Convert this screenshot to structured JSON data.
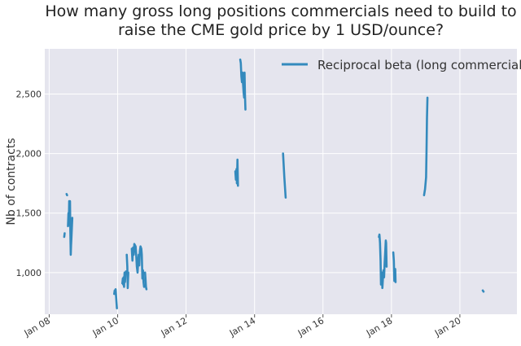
{
  "chart_data": {
    "type": "line",
    "title_line1": "How many gross long positions commercials need to build to",
    "title_line2": "raise the CME gold price by 1 USD/ounce?",
    "xlabel": "",
    "ylabel": "Nb of contracts",
    "ylim": [
      650,
      2880
    ],
    "xlim": [
      "2007-11-15",
      "2021-09-01"
    ],
    "y_ticks": [
      1000,
      1500,
      2000,
      2500
    ],
    "y_tick_labels": [
      "1,000",
      "1,500",
      "2,000",
      "2,500"
    ],
    "x_ticks": [
      "2008-01-01",
      "2010-01-01",
      "2012-01-01",
      "2014-01-01",
      "2016-01-01",
      "2018-01-01",
      "2020-01-01"
    ],
    "x_tick_labels": [
      "Jan 08",
      "Jan 10",
      "Jan 12",
      "Jan 14",
      "Jan 16",
      "Jan 18",
      "Jan 20"
    ],
    "grid": true,
    "legend_position": "top-right",
    "colors": {
      "series": "#348abd",
      "plot_bg": "#e5e5ee",
      "grid": "#ffffff"
    },
    "series": [
      {
        "name": "Reciprocal beta (long commercial)",
        "segments": [
          [
            [
              "2008-06-10",
              1300
            ],
            [
              "2008-06-14",
              1330
            ]
          ],
          [
            [
              "2008-07-05",
              1660
            ],
            [
              "2008-07-10",
              1650
            ]
          ],
          [
            [
              "2008-07-20",
              1390
            ],
            [
              "2008-07-25",
              1500
            ],
            [
              "2008-07-28",
              1400
            ],
            [
              "2008-08-02",
              1600
            ],
            [
              "2008-08-06",
              1450
            ],
            [
              "2008-08-10",
              1600
            ],
            [
              "2008-08-14",
              1350
            ],
            [
              "2008-08-18",
              1150
            ],
            [
              "2008-08-22",
              1230
            ],
            [
              "2008-08-26",
              1300
            ],
            [
              "2008-08-30",
              1380
            ],
            [
              "2008-09-04",
              1460
            ]
          ],
          [
            [
              "2009-11-25",
              820
            ],
            [
              "2009-11-30",
              850
            ],
            [
              "2009-12-04",
              830
            ],
            [
              "2009-12-10",
              860
            ],
            [
              "2009-12-15",
              800
            ],
            [
              "2009-12-20",
              740
            ],
            [
              "2009-12-24",
              700
            ]
          ],
          [
            [
              "2010-02-20",
              910
            ],
            [
              "2010-02-25",
              950
            ],
            [
              "2010-03-01",
              900
            ],
            [
              "2010-03-05",
              960
            ],
            [
              "2010-03-10",
              880
            ],
            [
              "2010-03-15",
              1000
            ],
            [
              "2010-03-20",
              920
            ],
            [
              "2010-03-25",
              980
            ],
            [
              "2010-03-30",
              1010
            ]
          ],
          [
            [
              "2010-04-08",
              1150
            ],
            [
              "2010-04-14",
              1050
            ],
            [
              "2010-04-18",
              870
            ],
            [
              "2010-04-24",
              1000
            ]
          ],
          [
            [
              "2010-06-01",
              1200
            ],
            [
              "2010-06-08",
              1100
            ],
            [
              "2010-06-15",
              1210
            ],
            [
              "2010-06-22",
              1150
            ],
            [
              "2010-06-28",
              1240
            ],
            [
              "2010-07-05",
              1230
            ],
            [
              "2010-07-12",
              1220
            ],
            [
              "2010-07-18",
              1150
            ],
            [
              "2010-07-25",
              1050
            ],
            [
              "2010-08-01",
              1000
            ],
            [
              "2010-08-08",
              1100
            ],
            [
              "2010-08-14",
              1150
            ],
            [
              "2010-08-20",
              1060
            ],
            [
              "2010-08-26",
              1180
            ],
            [
              "2010-09-02",
              1220
            ],
            [
              "2010-09-10",
              1200
            ],
            [
              "2010-09-16",
              1150
            ],
            [
              "2010-09-22",
              950
            ],
            [
              "2010-09-28",
              1020
            ],
            [
              "2010-10-04",
              920
            ],
            [
              "2010-10-10",
              880
            ]
          ],
          [
            [
              "2010-10-20",
              1000
            ],
            [
              "2010-10-25",
              950
            ],
            [
              "2010-10-30",
              880
            ],
            [
              "2010-11-04",
              860
            ]
          ],
          [
            [
              "2013-06-10",
              1850
            ],
            [
              "2013-06-16",
              1780
            ],
            [
              "2013-06-22",
              1870
            ],
            [
              "2013-06-26",
              1750
            ],
            [
              "2013-07-02",
              1950
            ],
            [
              "2013-07-08",
              1730
            ]
          ],
          [
            [
              "2013-08-01",
              2790
            ],
            [
              "2013-08-07",
              2760
            ],
            [
              "2013-08-13",
              2650
            ],
            [
              "2013-08-19",
              2600
            ],
            [
              "2013-08-25",
              2680
            ],
            [
              "2013-08-31",
              2580
            ],
            [
              "2013-09-06",
              2520
            ],
            [
              "2013-09-12",
              2470
            ],
            [
              "2013-09-16",
              2680
            ],
            [
              "2013-09-20",
              2500
            ],
            [
              "2013-09-26",
              2370
            ]
          ],
          [
            [
              "2014-11-01",
              2000
            ],
            [
              "2014-11-15",
              1800
            ],
            [
              "2014-11-29",
              1630
            ]
          ],
          [
            [
              "2017-08-20",
              1300
            ],
            [
              "2017-08-26",
              1320
            ],
            [
              "2017-09-01",
              1250
            ],
            [
              "2017-09-07",
              1100
            ],
            [
              "2017-09-11",
              900
            ],
            [
              "2017-09-15",
              980
            ],
            [
              "2017-09-21",
              1000
            ],
            [
              "2017-09-26",
              870
            ],
            [
              "2017-10-02",
              950
            ],
            [
              "2017-10-08",
              1020
            ],
            [
              "2017-10-14",
              960
            ],
            [
              "2017-10-20",
              1080
            ],
            [
              "2017-10-26",
              1170
            ],
            [
              "2017-11-01",
              1270
            ],
            [
              "2017-11-05",
              1250
            ],
            [
              "2017-11-10",
              1050
            ]
          ],
          [
            [
              "2018-01-20",
              1170
            ],
            [
              "2018-01-26",
              1100
            ],
            [
              "2018-02-01",
              930
            ],
            [
              "2018-02-05",
              1000
            ],
            [
              "2018-02-10",
              1030
            ],
            [
              "2018-02-14",
              920
            ]
          ],
          [
            [
              "2018-12-15",
              1650
            ],
            [
              "2018-12-25",
              1700
            ],
            [
              "2019-01-05",
              1800
            ],
            [
              "2019-01-10",
              2000
            ],
            [
              "2019-01-15",
              2300
            ],
            [
              "2019-01-20",
              2470
            ]
          ],
          [
            [
              "2020-09-01",
              850
            ],
            [
              "2020-09-10",
              840
            ]
          ]
        ]
      }
    ]
  }
}
